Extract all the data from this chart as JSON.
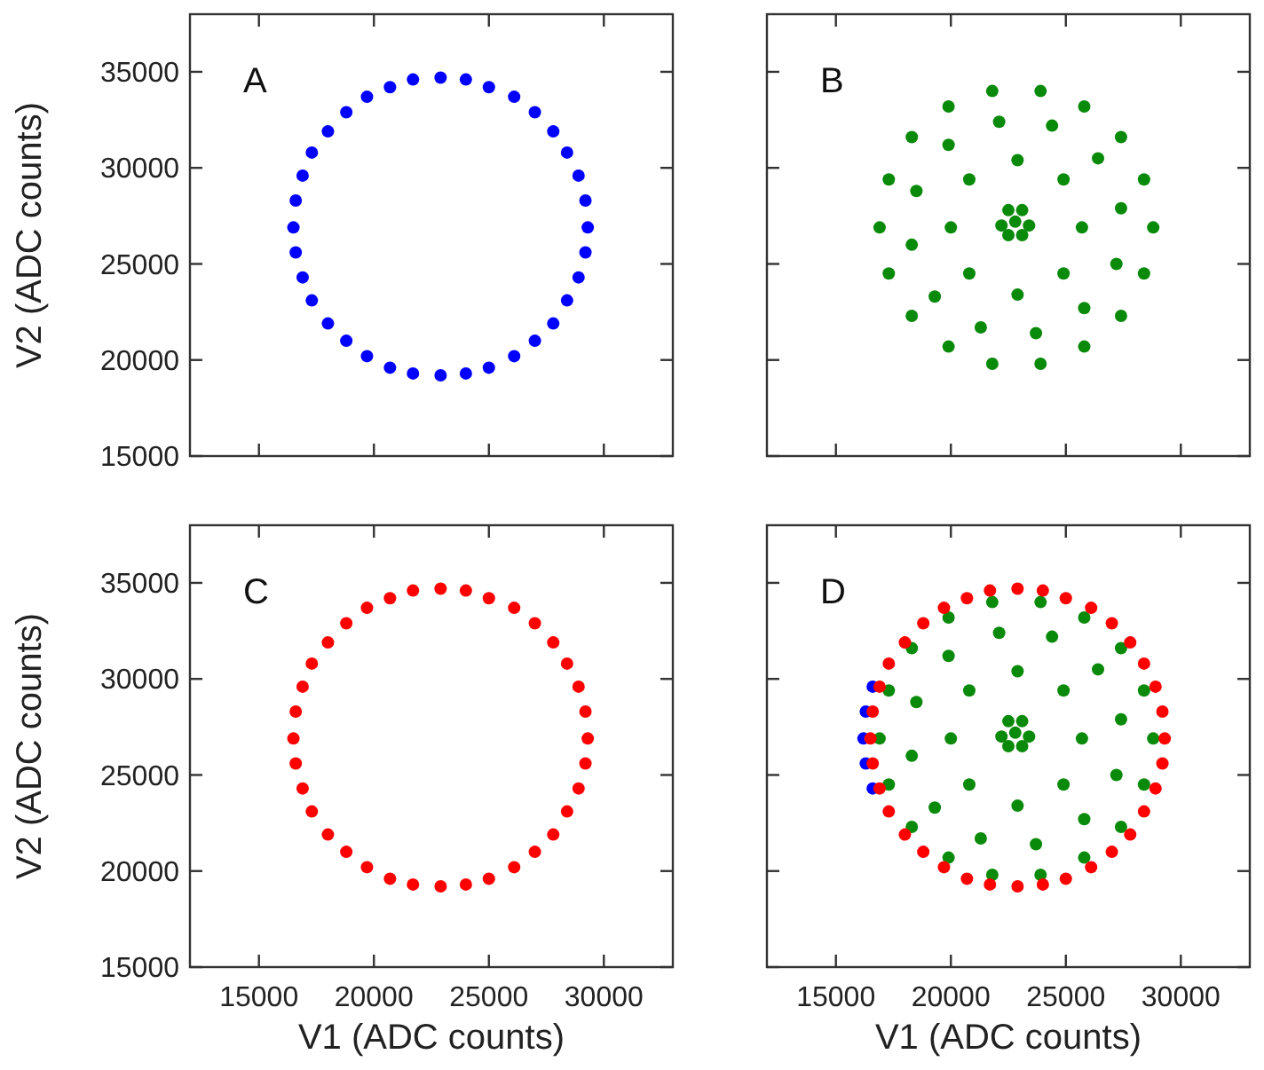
{
  "chart_data": [
    {
      "type": "scatter",
      "ylabel": "V2 (ADC counts)",
      "xlim": [
        12000,
        33000
      ],
      "ylim": [
        15000,
        38000
      ],
      "xticks": [
        15000,
        20000,
        25000,
        30000
      ],
      "yticks": [
        15000,
        20000,
        25000,
        30000,
        35000
      ],
      "tick_labels": "y",
      "annotations": [
        "A"
      ],
      "marker": "circle",
      "series": [
        {
          "color": "#0000ff",
          "x": [
            29300,
            29200,
            28900,
            28400,
            27800,
            27000,
            26100,
            25000,
            24000,
            22900,
            21700,
            20700,
            19700,
            18800,
            18000,
            17300,
            16900,
            16600,
            16500,
            16600,
            16900,
            17300,
            18000,
            18800,
            19700,
            20700,
            21700,
            22900,
            24000,
            25000,
            26100,
            27000,
            27800,
            28400,
            28900,
            29200
          ],
          "values": [
            26900,
            28300,
            29600,
            30800,
            31900,
            32900,
            33700,
            34200,
            34600,
            34700,
            34600,
            34200,
            33700,
            32900,
            31900,
            30800,
            29600,
            28300,
            26900,
            25600,
            24300,
            23100,
            21900,
            21000,
            20200,
            19600,
            19300,
            19200,
            19300,
            19600,
            20200,
            21000,
            21900,
            23100,
            24300,
            25600
          ]
        }
      ]
    },
    {
      "type": "scatter",
      "xlim": [
        12000,
        33000
      ],
      "ylim": [
        15000,
        38000
      ],
      "xticks": [
        15000,
        20000,
        25000,
        30000
      ],
      "yticks": [
        15000,
        20000,
        25000,
        30000,
        35000
      ],
      "tick_labels": false,
      "annotations": [
        "B"
      ],
      "marker": "circle",
      "series": [
        {
          "color": "#0a8a0a",
          "x": [
            28800,
            28400,
            27400,
            25800,
            23900,
            21800,
            19900,
            18300,
            17300,
            16900,
            17300,
            18300,
            19900,
            21800,
            23900,
            25800,
            27400,
            28400,
            27400,
            26400,
            24400,
            22100,
            19900,
            18500,
            18300,
            19300,
            21300,
            23700,
            25800,
            27200,
            25700,
            24900,
            22900,
            20800,
            20000,
            20800,
            22900,
            24900,
            22800,
            22200,
            23400,
            22500,
            23100,
            22500,
            23100
          ],
          "values": [
            26900,
            29400,
            31600,
            33200,
            34000,
            34000,
            33200,
            31600,
            29400,
            26900,
            24500,
            22300,
            20700,
            19800,
            19800,
            20700,
            22300,
            24500,
            27900,
            30500,
            32200,
            32400,
            31200,
            28800,
            26000,
            23300,
            21700,
            21400,
            22700,
            25000,
            26900,
            29400,
            30400,
            29400,
            26900,
            24500,
            23400,
            24500,
            27200,
            27000,
            27000,
            27800,
            27800,
            26500,
            26500
          ]
        }
      ]
    },
    {
      "type": "scatter",
      "xlabel": "V1 (ADC counts)",
      "ylabel": "V2 (ADC counts)",
      "xlim": [
        12000,
        33000
      ],
      "ylim": [
        15000,
        38000
      ],
      "xticks": [
        15000,
        20000,
        25000,
        30000
      ],
      "yticks": [
        15000,
        20000,
        25000,
        30000,
        35000
      ],
      "annotations": [
        "C"
      ],
      "marker": "circle",
      "series": [
        {
          "color": "#ff0000",
          "x": [
            29300,
            29200,
            28900,
            28400,
            27800,
            27000,
            26100,
            25000,
            24000,
            22900,
            21700,
            20700,
            19700,
            18800,
            18000,
            17300,
            16900,
            16600,
            16500,
            16600,
            16900,
            17300,
            18000,
            18800,
            19700,
            20700,
            21700,
            22900,
            24000,
            25000,
            26100,
            27000,
            27800,
            28400,
            28900,
            29200
          ],
          "values": [
            26900,
            28300,
            29600,
            30800,
            31900,
            32900,
            33700,
            34200,
            34600,
            34700,
            34600,
            34200,
            33700,
            32900,
            31900,
            30800,
            29600,
            28300,
            26900,
            25600,
            24300,
            23100,
            21900,
            21000,
            20200,
            19600,
            19300,
            19200,
            19300,
            19600,
            20200,
            21000,
            21900,
            23100,
            24300,
            25600
          ]
        }
      ]
    },
    {
      "type": "scatter",
      "xlabel": "V1 (ADC counts)",
      "xlim": [
        12000,
        33000
      ],
      "ylim": [
        15000,
        38000
      ],
      "xticks": [
        15000,
        20000,
        25000,
        30000
      ],
      "yticks": [
        15000,
        20000,
        25000,
        30000,
        35000
      ],
      "tick_labels": "x",
      "annotations": [
        "D"
      ],
      "marker": "circle",
      "series": [
        {
          "color": "#0000ff",
          "x": [
            16200,
            16300,
            16600,
            16300,
            16600
          ],
          "values": [
            26900,
            28300,
            29600,
            25600,
            24300
          ]
        },
        {
          "color": "#0a8a0a",
          "x": [
            28800,
            28400,
            27400,
            25800,
            23900,
            21800,
            19900,
            18300,
            17300,
            16900,
            17300,
            18300,
            19900,
            21800,
            23900,
            25800,
            27400,
            28400,
            27400,
            26400,
            24400,
            22100,
            19900,
            18500,
            18300,
            19300,
            21300,
            23700,
            25800,
            27200,
            25700,
            24900,
            22900,
            20800,
            20000,
            20800,
            22900,
            24900,
            22800,
            22200,
            23400,
            22500,
            23100,
            22500,
            23100
          ],
          "values": [
            26900,
            29400,
            31600,
            33200,
            34000,
            34000,
            33200,
            31600,
            29400,
            26900,
            24500,
            22300,
            20700,
            19800,
            19800,
            20700,
            22300,
            24500,
            27900,
            30500,
            32200,
            32400,
            31200,
            28800,
            26000,
            23300,
            21700,
            21400,
            22700,
            25000,
            26900,
            29400,
            30400,
            29400,
            26900,
            24500,
            23400,
            24500,
            27200,
            27000,
            27000,
            27800,
            27800,
            26500,
            26500
          ]
        },
        {
          "color": "#ff0000",
          "x": [
            29300,
            29200,
            28900,
            28400,
            27800,
            27000,
            26100,
            25000,
            24000,
            22900,
            21700,
            20700,
            19700,
            18800,
            18000,
            17300,
            16900,
            16600,
            16500,
            16600,
            16900,
            17300,
            18000,
            18800,
            19700,
            20700,
            21700,
            22900,
            24000,
            25000,
            26100,
            27000,
            27800,
            28400,
            28900,
            29200
          ],
          "values": [
            26900,
            28300,
            29600,
            30800,
            31900,
            32900,
            33700,
            34200,
            34600,
            34700,
            34600,
            34200,
            33700,
            32900,
            31900,
            30800,
            29600,
            28300,
            26900,
            25600,
            24300,
            23100,
            21900,
            21000,
            20200,
            19600,
            19300,
            19200,
            19300,
            19600,
            20200,
            21000,
            21900,
            23100,
            24300,
            25600
          ]
        }
      ]
    }
  ]
}
